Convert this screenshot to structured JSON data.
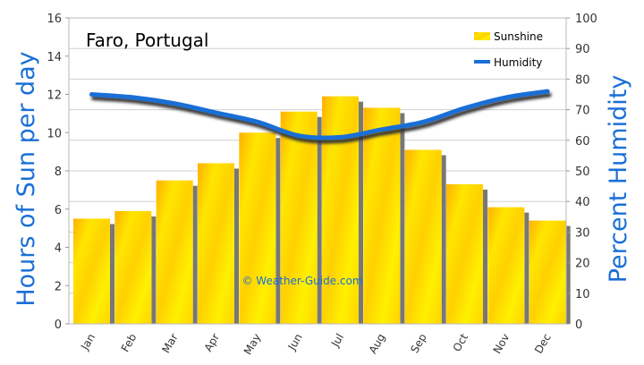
{
  "chart_data": {
    "type": "bar",
    "title": "Faro, Portugal",
    "categories": [
      "Jan",
      "Feb",
      "Mar",
      "Apr",
      "May",
      "Jun",
      "Jul",
      "Aug",
      "Sep",
      "Oct",
      "Nov",
      "Dec"
    ],
    "series": [
      {
        "name": "Sunshine",
        "type": "bar",
        "axis": "left",
        "values": [
          5.5,
          5.9,
          7.5,
          8.4,
          10.0,
          11.1,
          11.9,
          11.3,
          9.1,
          7.3,
          6.1,
          5.4
        ],
        "color": "#ffee00"
      },
      {
        "name": "Humidity",
        "type": "line",
        "axis": "right",
        "values": [
          75,
          74,
          72,
          69,
          66,
          61.5,
          61,
          63.5,
          66,
          70.5,
          74,
          76
        ],
        "color": "#1a6fd6"
      }
    ],
    "ylabel": "Hours of Sun per day",
    "y2label": "Percent Humidity",
    "ylim": [
      0,
      16
    ],
    "y2lim": [
      0,
      100
    ],
    "yticks": [
      0,
      2,
      4,
      6,
      8,
      10,
      12,
      14,
      16
    ],
    "y2ticks": [
      0,
      10,
      20,
      30,
      40,
      50,
      60,
      70,
      80,
      90,
      100
    ],
    "grid": true,
    "legend": "top-right",
    "watermark": "© Weather-Guide.com",
    "axis_title_color": "#1a6fd6"
  }
}
